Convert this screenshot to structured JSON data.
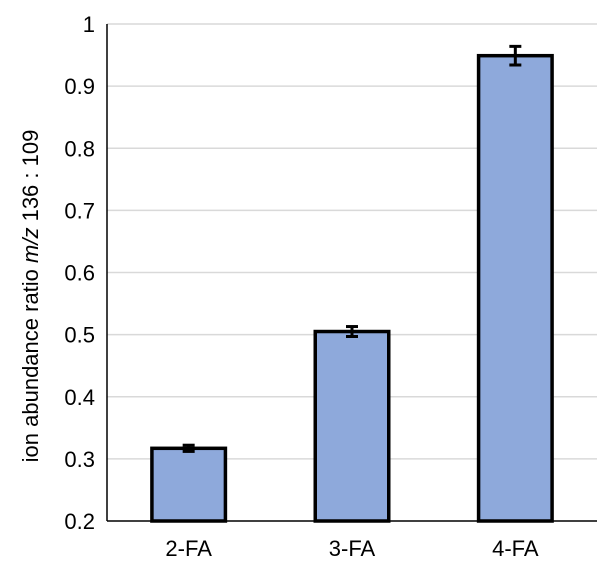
{
  "chart_data": {
    "type": "bar",
    "title": "",
    "xlabel": "",
    "ylabel": {
      "prefix": "ion abundance ratio ",
      "italic": "m/z",
      "suffix": " 136 : 109"
    },
    "categories": [
      "2-FA",
      "3-FA",
      "4-FA"
    ],
    "values": [
      0.317,
      0.505,
      0.949
    ],
    "errors": [
      0.005,
      0.008,
      0.015
    ],
    "ylim": [
      0.2,
      1.0
    ],
    "yticks": [
      0.2,
      0.3,
      0.4,
      0.5,
      0.6,
      0.7,
      0.8,
      0.9,
      1.0
    ],
    "ytick_labels": [
      "0.2",
      "0.3",
      "0.4",
      "0.5",
      "0.6",
      "0.7",
      "0.8",
      "0.9",
      "1"
    ],
    "grid": true,
    "legend": "none",
    "colors": {
      "bar_fill": "#8EA9DB",
      "bar_stroke": "#000000",
      "grid": "#D9D9D9",
      "axis": "#000000"
    }
  }
}
